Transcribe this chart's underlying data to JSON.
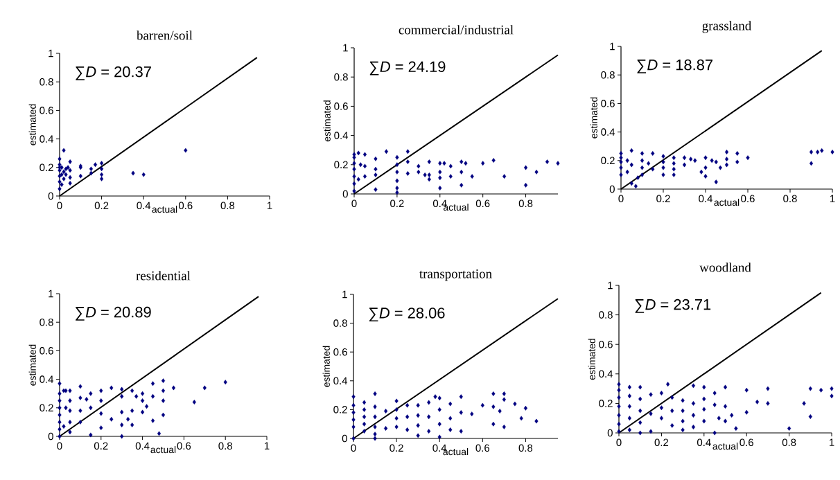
{
  "chart_data": [
    {
      "type": "scatter",
      "title": "barren/soil",
      "xlabel": "actual",
      "ylabel": "estimated",
      "annotations": [
        "∑*D* = 20.37"
      ],
      "xlim": [
        0,
        1
      ],
      "ylim": [
        0,
        1
      ],
      "xticks": [
        0,
        0.2,
        0.4,
        0.6,
        0.8,
        1
      ],
      "yticks": [
        0,
        0.2,
        0.4,
        0.6,
        0.8,
        1
      ],
      "series": [
        {
          "type": "scatter",
          "marker": "diamond",
          "color": "#000080",
          "x": [
            0,
            0,
            0,
            0,
            0,
            0,
            0,
            0.01,
            0.01,
            0.01,
            0.02,
            0.02,
            0.02,
            0.03,
            0.03,
            0.04,
            0.05,
            0.05,
            0.05,
            0.05,
            0.1,
            0.1,
            0.1,
            0.15,
            0.15,
            0.17,
            0.2,
            0.2,
            0.2,
            0.2,
            0.35,
            0.4,
            0.6
          ],
          "values": [
            0.05,
            0.1,
            0.14,
            0.18,
            0.2,
            0.22,
            0.26,
            0.08,
            0.15,
            0.2,
            0.32,
            0.17,
            0.12,
            0.19,
            0.15,
            0.2,
            0.24,
            0.18,
            0.13,
            0.09,
            0.21,
            0.2,
            0.14,
            0.19,
            0.16,
            0.22,
            0.23,
            0.19,
            0.15,
            0.12,
            0.16,
            0.15,
            0.32
          ]
        },
        {
          "type": "line",
          "color": "#000000",
          "x": [
            0,
            0.94
          ],
          "values": [
            0,
            0.97
          ]
        }
      ]
    },
    {
      "type": "scatter",
      "title": "commercial/industrial",
      "xlabel": "actual",
      "ylabel": "estimated",
      "annotations": [
        "∑*D* = 24.19"
      ],
      "xlim": [
        0,
        0.95
      ],
      "ylim": [
        0,
        1
      ],
      "xticks": [
        0,
        0.2,
        0.4,
        0.6,
        0.8
      ],
      "yticks": [
        0,
        0.2,
        0.4,
        0.6,
        0.8,
        1
      ],
      "series": [
        {
          "type": "scatter",
          "marker": "diamond",
          "color": "#000080",
          "x": [
            0,
            0,
            0,
            0,
            0,
            0,
            0,
            0.02,
            0.02,
            0.03,
            0.05,
            0.05,
            0.05,
            0.1,
            0.1,
            0.1,
            0.1,
            0.15,
            0.2,
            0.2,
            0.2,
            0.2,
            0.2,
            0.2,
            0.25,
            0.25,
            0.25,
            0.3,
            0.3,
            0.33,
            0.35,
            0.35,
            0.35,
            0.4,
            0.4,
            0.4,
            0.4,
            0.42,
            0.45,
            0.45,
            0.5,
            0.5,
            0.5,
            0.52,
            0.55,
            0.6,
            0.65,
            0.7,
            0.8,
            0.8,
            0.85,
            0.9,
            0.95
          ],
          "values": [
            0.02,
            0.07,
            0.12,
            0.17,
            0.21,
            0.25,
            0.27,
            0.28,
            0.1,
            0.2,
            0.27,
            0.19,
            0.12,
            0.24,
            0.17,
            0.13,
            0.03,
            0.29,
            0.25,
            0.2,
            0.15,
            0.09,
            0.04,
            0.01,
            0.29,
            0.22,
            0.14,
            0.19,
            0.15,
            0.13,
            0.22,
            0.13,
            0.1,
            0.21,
            0.15,
            0.11,
            0.04,
            0.21,
            0.19,
            0.12,
            0.22,
            0.15,
            0.06,
            0.21,
            0.12,
            0.21,
            0.23,
            0.12,
            0.18,
            0.06,
            0.15,
            0.22,
            0.21
          ]
        },
        {
          "type": "line",
          "color": "#000000",
          "x": [
            0,
            0.95
          ],
          "values": [
            0,
            0.95
          ]
        }
      ]
    },
    {
      "type": "scatter",
      "title": "grassland",
      "xlabel": "actual",
      "ylabel": "estimated",
      "annotations": [
        "∑*D* = 18.87"
      ],
      "xlim": [
        0,
        1
      ],
      "ylim": [
        0,
        1
      ],
      "xticks": [
        0,
        0.2,
        0.4,
        0.6,
        0.8,
        1
      ],
      "yticks": [
        0,
        0.2,
        0.4,
        0.6,
        0.8,
        1
      ],
      "series": [
        {
          "type": "scatter",
          "marker": "diamond",
          "color": "#000080",
          "x": [
            0,
            0,
            0,
            0,
            0,
            0.03,
            0.03,
            0.05,
            0.05,
            0.05,
            0.07,
            0.08,
            0.1,
            0.1,
            0.1,
            0.1,
            0.13,
            0.15,
            0.15,
            0.2,
            0.2,
            0.2,
            0.2,
            0.25,
            0.25,
            0.25,
            0.25,
            0.3,
            0.3,
            0.33,
            0.35,
            0.38,
            0.4,
            0.4,
            0.4,
            0.43,
            0.45,
            0.45,
            0.47,
            0.5,
            0.5,
            0.5,
            0.55,
            0.55,
            0.6,
            0.9,
            0.9,
            0.93,
            0.95,
            1
          ],
          "values": [
            0.1,
            0.15,
            0.19,
            0.22,
            0.25,
            0.12,
            0.2,
            0.27,
            0.17,
            0.04,
            0.02,
            0.08,
            0.25,
            0.2,
            0.15,
            0.1,
            0.18,
            0.25,
            0.14,
            0.23,
            0.19,
            0.15,
            0.1,
            0.22,
            0.18,
            0.14,
            0.1,
            0.22,
            0.17,
            0.21,
            0.2,
            0.12,
            0.22,
            0.15,
            0.09,
            0.2,
            0.19,
            0.05,
            0.15,
            0.26,
            0.21,
            0.17,
            0.25,
            0.19,
            0.22,
            0.26,
            0.18,
            0.26,
            0.27,
            0.26
          ]
        },
        {
          "type": "line",
          "color": "#000000",
          "x": [
            0,
            0.95
          ],
          "values": [
            0,
            0.97
          ]
        }
      ]
    },
    {
      "type": "scatter",
      "title": "residential",
      "xlabel": "actual",
      "ylabel": "estimated",
      "annotations": [
        "∑*D* = 20.89"
      ],
      "xlim": [
        0,
        1
      ],
      "ylim": [
        0,
        1
      ],
      "xticks": [
        0,
        0.2,
        0.4,
        0.6,
        0.8,
        1
      ],
      "yticks": [
        0,
        0.2,
        0.4,
        0.6,
        0.8,
        1
      ],
      "series": [
        {
          "type": "scatter",
          "marker": "diamond",
          "color": "#000080",
          "x": [
            0,
            0,
            0,
            0,
            0,
            0,
            0,
            0,
            0.02,
            0.02,
            0.03,
            0.03,
            0.05,
            0.05,
            0.05,
            0.05,
            0.05,
            0.1,
            0.1,
            0.1,
            0.1,
            0.13,
            0.15,
            0.15,
            0.15,
            0.2,
            0.2,
            0.2,
            0.2,
            0.25,
            0.25,
            0.3,
            0.3,
            0.3,
            0.3,
            0.3,
            0.33,
            0.35,
            0.35,
            0.35,
            0.37,
            0.4,
            0.4,
            0.4,
            0.42,
            0.45,
            0.45,
            0.45,
            0.48,
            0.5,
            0.5,
            0.5,
            0.5,
            0.55,
            0.65,
            0.7,
            0.8
          ],
          "values": [
            0,
            0.05,
            0.1,
            0.15,
            0.2,
            0.25,
            0.3,
            0.37,
            0.32,
            0.07,
            0.2,
            0.32,
            0.32,
            0.25,
            0.18,
            0.1,
            0.03,
            0.35,
            0.27,
            0.18,
            0.1,
            0.26,
            0.3,
            0.2,
            0.01,
            0.32,
            0.25,
            0.16,
            0.06,
            0.34,
            0.12,
            0.33,
            0.28,
            0.17,
            0.08,
            0,
            0.12,
            0.32,
            0.18,
            0.08,
            0.28,
            0.3,
            0.25,
            0.17,
            0.21,
            0.37,
            0.28,
            0.11,
            0.02,
            0.39,
            0.32,
            0.25,
            0.15,
            0.34,
            0.24,
            0.34,
            0.38
          ]
        },
        {
          "type": "line",
          "color": "#000000",
          "x": [
            0,
            0.96
          ],
          "values": [
            0,
            0.98
          ]
        }
      ]
    },
    {
      "type": "scatter",
      "title": "transportation",
      "xlabel": "actual",
      "ylabel": "estimated",
      "annotations": [
        "∑*D* = 28.06"
      ],
      "xlim": [
        0,
        0.95
      ],
      "ylim": [
        0,
        1
      ],
      "xticks": [
        0,
        0.2,
        0.4,
        0.6,
        0.8
      ],
      "yticks": [
        0,
        0.2,
        0.4,
        0.6,
        0.8,
        1
      ],
      "series": [
        {
          "type": "scatter",
          "marker": "diamond",
          "color": "#000080",
          "x": [
            0,
            0,
            0,
            0,
            0,
            0,
            0.05,
            0.05,
            0.05,
            0.05,
            0.05,
            0.1,
            0.1,
            0.1,
            0.1,
            0.1,
            0.1,
            0.15,
            0.15,
            0.2,
            0.2,
            0.2,
            0.2,
            0.25,
            0.25,
            0.25,
            0.3,
            0.3,
            0.3,
            0.3,
            0.35,
            0.35,
            0.35,
            0.38,
            0.4,
            0.4,
            0.4,
            0.4,
            0.45,
            0.45,
            0.45,
            0.5,
            0.5,
            0.5,
            0.55,
            0.6,
            0.65,
            0.65,
            0.65,
            0.68,
            0.7,
            0.7,
            0.7,
            0.75,
            0.78,
            0.8,
            0.85
          ],
          "values": [
            0,
            0.08,
            0.13,
            0.18,
            0.23,
            0.29,
            0.25,
            0.2,
            0.15,
            0.1,
            0.05,
            0.31,
            0.22,
            0.15,
            0.08,
            0.03,
            0,
            0.19,
            0.07,
            0.26,
            0.2,
            0.14,
            0.08,
            0.23,
            0.15,
            0.06,
            0.23,
            0.16,
            0.09,
            0.02,
            0.25,
            0.15,
            0.05,
            0.29,
            0.28,
            0.2,
            0.1,
            0.01,
            0.24,
            0.14,
            0.06,
            0.29,
            0.18,
            0.05,
            0.17,
            0.23,
            0.31,
            0.22,
            0.1,
            0.19,
            0.31,
            0.27,
            0.08,
            0.24,
            0.14,
            0.21,
            0.12
          ]
        },
        {
          "type": "line",
          "color": "#000000",
          "x": [
            0,
            0.95
          ],
          "values": [
            0,
            0.97
          ]
        }
      ]
    },
    {
      "type": "scatter",
      "title": "woodland",
      "xlabel": "actual",
      "ylabel": "estimated",
      "annotations": [
        "∑*D* = 23.71"
      ],
      "xlim": [
        0,
        1
      ],
      "ylim": [
        0,
        1
      ],
      "xticks": [
        0,
        0.2,
        0.4,
        0.6,
        0.8,
        1
      ],
      "yticks": [
        0,
        0.2,
        0.4,
        0.6,
        0.8,
        1
      ],
      "series": [
        {
          "type": "scatter",
          "marker": "diamond",
          "color": "#000080",
          "x": [
            0,
            0,
            0,
            0,
            0,
            0,
            0,
            0.05,
            0.05,
            0.05,
            0.05,
            0.05,
            0.1,
            0.1,
            0.1,
            0.1,
            0.1,
            0.15,
            0.15,
            0.15,
            0.2,
            0.2,
            0.2,
            0.23,
            0.25,
            0.25,
            0.25,
            0.3,
            0.3,
            0.3,
            0.3,
            0.35,
            0.35,
            0.35,
            0.35,
            0.4,
            0.4,
            0.4,
            0.4,
            0.45,
            0.45,
            0.45,
            0.47,
            0.5,
            0.5,
            0.5,
            0.53,
            0.55,
            0.6,
            0.6,
            0.65,
            0.7,
            0.7,
            0.8,
            0.87,
            0.9,
            0.9,
            0.95,
            1,
            1
          ],
          "values": [
            0.01,
            0.06,
            0.12,
            0.18,
            0.24,
            0.29,
            0.33,
            0.31,
            0.25,
            0.18,
            0.1,
            0.02,
            0.31,
            0.23,
            0.15,
            0.07,
            0,
            0.26,
            0.13,
            0.01,
            0.27,
            0.17,
            0.1,
            0.33,
            0.24,
            0.15,
            0.05,
            0.22,
            0.15,
            0.08,
            0.02,
            0.32,
            0.2,
            0.12,
            0.04,
            0.31,
            0.23,
            0.16,
            0.08,
            0.27,
            0.19,
            0,
            0.1,
            0.31,
            0.18,
            0.08,
            0.12,
            0.03,
            0.29,
            0.14,
            0.21,
            0.3,
            0.2,
            0.03,
            0.2,
            0.3,
            0.11,
            0.29,
            0.3,
            0.25
          ]
        },
        {
          "type": "line",
          "color": "#000000",
          "x": [
            0,
            0.95
          ],
          "values": [
            0,
            0.95
          ]
        }
      ]
    }
  ]
}
